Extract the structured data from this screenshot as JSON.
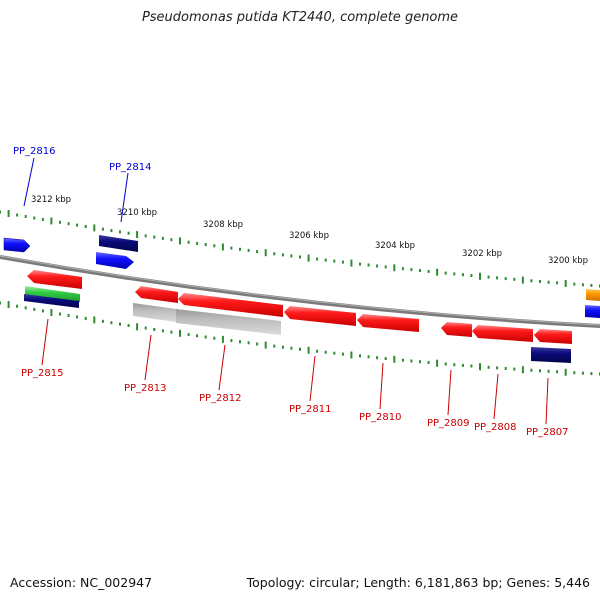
{
  "title": "Pseudomonas putida KT2440, complete genome",
  "accession": "Accession: NC_002947",
  "topology": "Topology: circular; Length: 6,181,863 bp; Genes: 5,446",
  "colors": {
    "backbone": "#8a8a8a",
    "tick": "#2e8b2e",
    "gene_red": "#ff1a1a",
    "gene_blue": "#1010ff",
    "gene_navy": "#0a0a7a",
    "gene_green": "#33cc44",
    "gene_gray": "#b8b8b8",
    "gene_orange": "#ff9900",
    "label_blue": "#0000cc",
    "label_red": "#cc0000"
  },
  "scale_labels": [
    "3212 kbp",
    "3210 kbp",
    "3208 kbp",
    "3206 kbp",
    "3204 kbp",
    "3202 kbp",
    "3200 kbp"
  ],
  "gene_labels": [
    {
      "id": "PP_2816",
      "color": "blue"
    },
    {
      "id": "PP_2814",
      "color": "blue"
    },
    {
      "id": "PP_2815",
      "color": "red"
    },
    {
      "id": "PP_2813",
      "color": "red"
    },
    {
      "id": "PP_2812",
      "color": "red"
    },
    {
      "id": "PP_2811",
      "color": "red"
    },
    {
      "id": "PP_2810",
      "color": "red"
    },
    {
      "id": "PP_2809",
      "color": "red"
    },
    {
      "id": "PP_2808",
      "color": "red"
    },
    {
      "id": "PP_2807",
      "color": "red"
    }
  ]
}
